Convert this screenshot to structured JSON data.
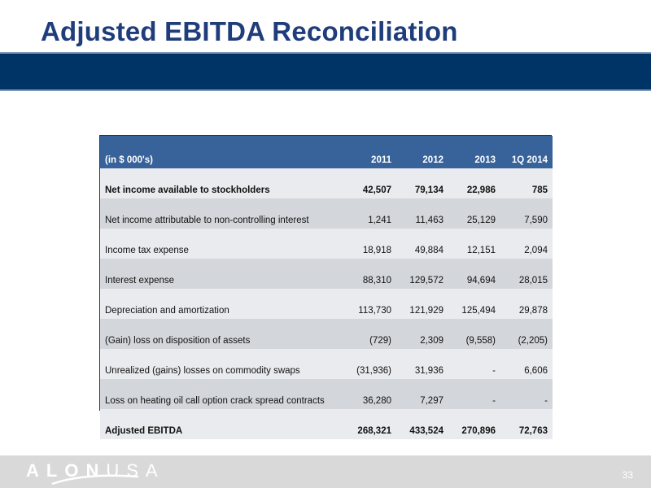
{
  "slide": {
    "title": "Adjusted EBITDA Reconciliation",
    "page_number": "33"
  },
  "logo": {
    "bold_part": "ALON",
    "light_part": "USA"
  },
  "table": {
    "header": {
      "label": "(in $ 000's)",
      "columns": [
        "2011",
        "2012",
        "2013",
        "1Q 2014"
      ]
    },
    "rows": [
      {
        "label": "Net income available to stockholders",
        "values": [
          "42,507",
          "79,134",
          "22,986",
          "785"
        ],
        "bold": true
      },
      {
        "label": "Net income attributable to non-controlling interest",
        "values": [
          "1,241",
          "11,463",
          "25,129",
          "7,590"
        ],
        "bold": false
      },
      {
        "label": "Income tax expense",
        "values": [
          "18,918",
          "49,884",
          "12,151",
          "2,094"
        ],
        "bold": false
      },
      {
        "label": "Interest expense",
        "values": [
          "88,310",
          "129,572",
          "94,694",
          "28,015"
        ],
        "bold": false
      },
      {
        "label": "Depreciation and amortization",
        "values": [
          "113,730",
          "121,929",
          "125,494",
          "29,878"
        ],
        "bold": false
      },
      {
        "label": "(Gain) loss on disposition of assets",
        "values": [
          "(729)",
          "2,309",
          "(9,558)",
          "(2,205)"
        ],
        "bold": false
      },
      {
        "label": "Unrealized (gains) losses on commodity swaps",
        "values": [
          "(31,936)",
          "31,936",
          "-",
          "6,606"
        ],
        "bold": false
      },
      {
        "label": "Loss on heating oil call option crack spread contracts",
        "values": [
          "36,280",
          "7,297",
          "-",
          "-"
        ],
        "bold": false
      },
      {
        "label": "Adjusted EBITDA",
        "values": [
          "268,321",
          "433,524",
          "270,896",
          "72,763"
        ],
        "bold": true
      }
    ]
  },
  "colors": {
    "title": "#1f3d7a",
    "band": "#003366",
    "header": "#37639a",
    "row_shade": "#d3d6db",
    "row_light": "#e9ebee",
    "footer": "#d9d9d9"
  }
}
